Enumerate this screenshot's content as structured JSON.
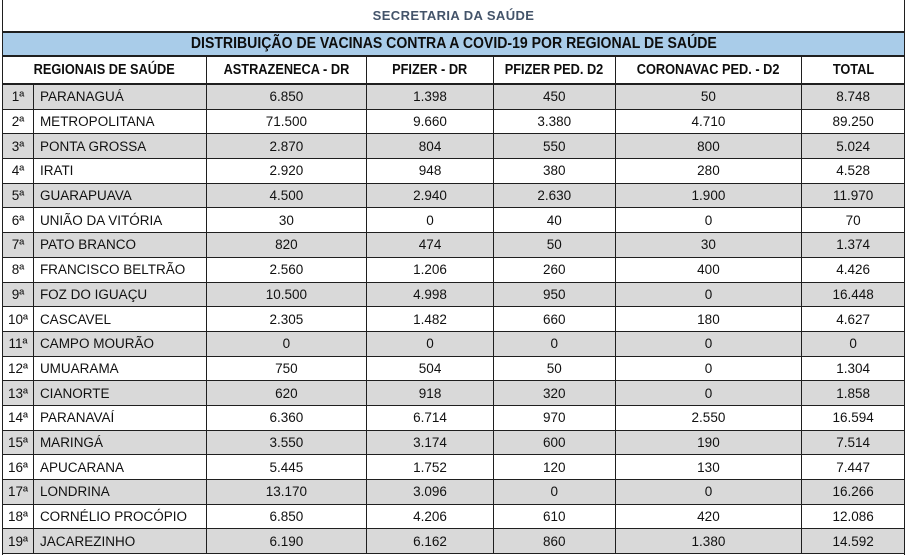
{
  "header": {
    "secretaria": "SECRETARIA DA SAÚDE"
  },
  "table": {
    "title": "DISTRIBUIÇÃO DE VACINAS CONTRA A COVID-19 POR REGIONAL DE SAÚDE",
    "columns": [
      "REGIONAIS DE SAÚDE",
      "ASTRAZENECA - DR",
      "PFIZER - DR",
      "PFIZER PED. D2",
      "CORONAVAC PED. - D2",
      "TOTAL"
    ],
    "rows": [
      {
        "num": "1ª",
        "region": "PARANAGUÁ",
        "values": [
          "6.850",
          "1.398",
          "450",
          "50",
          "8.748"
        ]
      },
      {
        "num": "2ª",
        "region": "METROPOLITANA",
        "values": [
          "71.500",
          "9.660",
          "3.380",
          "4.710",
          "89.250"
        ]
      },
      {
        "num": "3ª",
        "region": "PONTA GROSSA",
        "values": [
          "2.870",
          "804",
          "550",
          "800",
          "5.024"
        ]
      },
      {
        "num": "4ª",
        "region": "IRATI",
        "values": [
          "2.920",
          "948",
          "380",
          "280",
          "4.528"
        ]
      },
      {
        "num": "5ª",
        "region": "GUARAPUAVA",
        "values": [
          "4.500",
          "2.940",
          "2.630",
          "1.900",
          "11.970"
        ]
      },
      {
        "num": "6ª",
        "region": "UNIÃO DA VITÓRIA",
        "values": [
          "30",
          "0",
          "40",
          "0",
          "70"
        ]
      },
      {
        "num": "7ª",
        "region": "PATO BRANCO",
        "values": [
          "820",
          "474",
          "50",
          "30",
          "1.374"
        ]
      },
      {
        "num": "8ª",
        "region": "FRANCISCO BELTRÃO",
        "values": [
          "2.560",
          "1.206",
          "260",
          "400",
          "4.426"
        ]
      },
      {
        "num": "9ª",
        "region": "FOZ DO IGUAÇU",
        "values": [
          "10.500",
          "4.998",
          "950",
          "0",
          "16.448"
        ]
      },
      {
        "num": "10ª",
        "region": "CASCAVEL",
        "values": [
          "2.305",
          "1.482",
          "660",
          "180",
          "4.627"
        ]
      },
      {
        "num": "11ª",
        "region": "CAMPO MOURÃO",
        "values": [
          "0",
          "0",
          "0",
          "0",
          "0"
        ]
      },
      {
        "num": "12ª",
        "region": "UMUARAMA",
        "values": [
          "750",
          "504",
          "50",
          "0",
          "1.304"
        ]
      },
      {
        "num": "13ª",
        "region": "CIANORTE",
        "values": [
          "620",
          "918",
          "320",
          "0",
          "1.858"
        ]
      },
      {
        "num": "14ª",
        "region": "PARANAVAÍ",
        "values": [
          "6.360",
          "6.714",
          "970",
          "2.550",
          "16.594"
        ]
      },
      {
        "num": "15ª",
        "region": "MARINGÁ",
        "values": [
          "3.550",
          "3.174",
          "600",
          "190",
          "7.514"
        ]
      },
      {
        "num": "16ª",
        "region": "APUCARANA",
        "values": [
          "5.445",
          "1.752",
          "120",
          "130",
          "7.447"
        ]
      },
      {
        "num": "17ª",
        "region": "LONDRINA",
        "values": [
          "13.170",
          "3.096",
          "0",
          "0",
          "16.266"
        ]
      },
      {
        "num": "18ª",
        "region": "CORNÉLIO PROCÓPIO",
        "values": [
          "6.850",
          "4.206",
          "610",
          "420",
          "12.086"
        ]
      },
      {
        "num": "19ª",
        "region": "JACAREZINHO",
        "values": [
          "6.190",
          "6.162",
          "860",
          "1.380",
          "14.592"
        ]
      }
    ]
  },
  "colors": {
    "title_bg": "#A9CCE9",
    "stripe": "#D9D9D9",
    "secretaria_text": "#44546A",
    "border": "#1f1f1f"
  }
}
